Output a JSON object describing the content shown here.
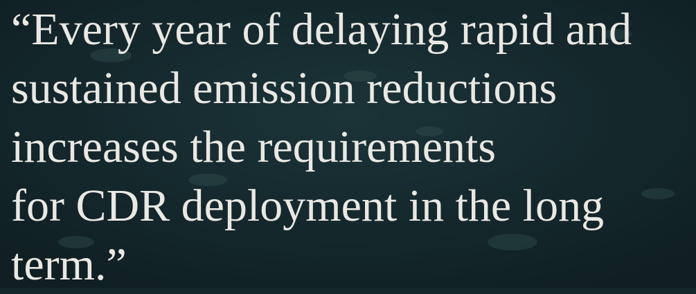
{
  "quote": {
    "lines": [
      "“Every year of delaying rapid and",
      "sustained emission reductions",
      "increases the requirements",
      "for CDR deployment in the long",
      "term.”"
    ]
  }
}
